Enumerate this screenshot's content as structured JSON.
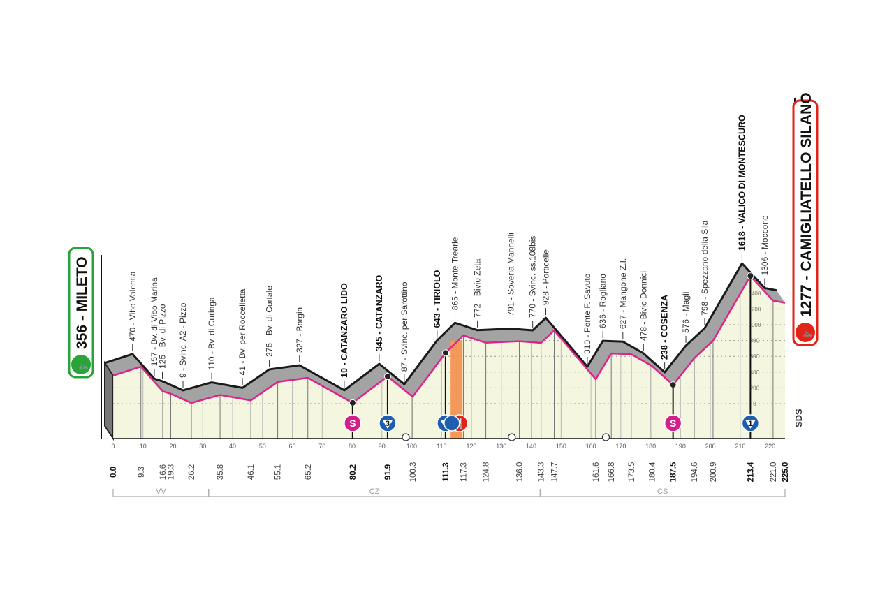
{
  "chart_data": {
    "type": "area",
    "title": "",
    "xlabel": "",
    "ylabel": "",
    "xlim": [
      0,
      225
    ],
    "ylim": [
      0,
      1618
    ],
    "grid": true,
    "start": {
      "km": "0.0",
      "elevation": 356,
      "label": "356 - MILETO",
      "color": "#2aa33a"
    },
    "finish": {
      "km": "225.0",
      "elevation": 1277,
      "label": "1277 - CAMIGLIATELLO SILANO",
      "color": "#e2231a"
    },
    "points": [
      {
        "km": 9.3,
        "km_label": "9.3",
        "elevation": 470,
        "label": "470 - Vibo Valentia",
        "bold": false
      },
      {
        "km": 16.6,
        "km_label": "16.6",
        "elevation": 157,
        "label": "157 - Bv. di Vibo Marina",
        "bold": false
      },
      {
        "km": 19.3,
        "km_label": "19.3",
        "elevation": 125,
        "label": "125 - Bv. di Pizzo",
        "bold": false
      },
      {
        "km": 26.2,
        "km_label": "26.2",
        "elevation": 9,
        "label": "9 - Svinc. A2 - Pizzo",
        "bold": false
      },
      {
        "km": 35.8,
        "km_label": "35.8",
        "elevation": 110,
        "label": "110 - Bv. di Curinga",
        "bold": false
      },
      {
        "km": 46.1,
        "km_label": "46.1",
        "elevation": 41,
        "label": "41 - Bv. per Roccelletta",
        "bold": false
      },
      {
        "km": 55.1,
        "km_label": "55.1",
        "elevation": 275,
        "label": "275 - Bv. di Cortale",
        "bold": false
      },
      {
        "km": 65.2,
        "km_label": "65.2",
        "elevation": 327,
        "label": "327 - Borgia",
        "bold": false
      },
      {
        "km": 80.2,
        "km_label": "80.2",
        "elevation": 10,
        "label": "10 - CATANZARO LIDO",
        "bold": true
      },
      {
        "km": 91.9,
        "km_label": "91.9",
        "elevation": 345,
        "label": "345 - CATANZARO",
        "bold": true
      },
      {
        "km": 100.3,
        "km_label": "100.3",
        "elevation": 87,
        "label": "87 - Svinc. per Sarottino",
        "bold": false
      },
      {
        "km": 111.3,
        "km_label": "111.3",
        "elevation": 643,
        "label": "643 - TIRIOLO",
        "bold": true
      },
      {
        "km": 117.3,
        "km_label": "117.3",
        "elevation": 865,
        "label": "865 - Monte Trearie",
        "bold": false
      },
      {
        "km": 124.8,
        "km_label": "124.8",
        "elevation": 772,
        "label": "772 - Bivio Zeta",
        "bold": false
      },
      {
        "km": 136.0,
        "km_label": "136.0",
        "elevation": 791,
        "label": "791 - Soveria Mannelli",
        "bold": false
      },
      {
        "km": 143.3,
        "km_label": "143.3",
        "elevation": 770,
        "label": "770 - Svinc. ss.108bis",
        "bold": false
      },
      {
        "km": 147.7,
        "km_label": "147.7",
        "elevation": 928,
        "label": "928 - Porticelle",
        "bold": false
      },
      {
        "km": 161.6,
        "km_label": "161.6",
        "elevation": 310,
        "label": "310 - Ponte F. Savuto",
        "bold": false
      },
      {
        "km": 166.8,
        "km_label": "166.8",
        "elevation": 636,
        "label": "636 - Rogliano",
        "bold": false
      },
      {
        "km": 173.5,
        "km_label": "173.5",
        "elevation": 627,
        "label": "627 - Mangone Z.I.",
        "bold": false
      },
      {
        "km": 180.4,
        "km_label": "180.4",
        "elevation": 478,
        "label": "478 - Bivio Donnici",
        "bold": false
      },
      {
        "km": 187.5,
        "km_label": "187.5",
        "elevation": 238,
        "label": "238 - COSENZA",
        "bold": true
      },
      {
        "km": 194.6,
        "km_label": "194.6",
        "elevation": 576,
        "label": "576 - Magli",
        "bold": false
      },
      {
        "km": 200.9,
        "km_label": "200.9",
        "elevation": 798,
        "label": "798 - Spezzano della Sila",
        "bold": false
      },
      {
        "km": 213.4,
        "km_label": "213.4",
        "elevation": 1618,
        "label": "1618 - VALICO DI MONTESCURO",
        "bold": true
      },
      {
        "km": 221.0,
        "km_label": "221.0",
        "elevation": 1306,
        "label": "1306 - Moccone",
        "bold": false
      }
    ],
    "x_ticks": [
      "0",
      "10",
      "20",
      "30",
      "40",
      "50",
      "60",
      "70",
      "80",
      "90",
      "100",
      "110",
      "120",
      "130",
      "140",
      "150",
      "160",
      "170",
      "180",
      "190",
      "200",
      "210",
      "220"
    ],
    "elevation_ticks": [
      "0",
      "200",
      "400",
      "600",
      "800",
      "1000",
      "1200",
      "1400"
    ],
    "markers": [
      {
        "type": "sprint",
        "km": 80.2,
        "text": "S",
        "color": "#d21f8c"
      },
      {
        "type": "kom",
        "km": 91.9,
        "text": "3",
        "color": "#1d5fae"
      },
      {
        "type": "kom",
        "km": 111.3,
        "text": "3",
        "color": "#1d5fae"
      },
      {
        "type": "feed",
        "km": 117.3,
        "text": "🍴",
        "color": "#e2231a"
      },
      {
        "type": "sprint",
        "km": 187.5,
        "text": "S",
        "color": "#d21f8c"
      },
      {
        "type": "kom",
        "km": 213.4,
        "text": "1",
        "color": "#1d5fae"
      }
    ],
    "feed_zone": [
      113,
      117
    ],
    "small_icons": [
      {
        "type": "tunnel",
        "km": 98
      },
      {
        "type": "level-crossing",
        "km": 133.5
      },
      {
        "type": "level-crossing",
        "km": 165
      }
    ],
    "provinces": [
      {
        "code": "VV",
        "from": 0,
        "to": 32
      },
      {
        "code": "CZ",
        "from": 32,
        "to": 143
      },
      {
        "code": "CS",
        "from": 143,
        "to": 225
      }
    ],
    "logo": "SDS",
    "colors": {
      "line": "#e0218a",
      "fill": "#f4f6df",
      "band": "#a3a3a3",
      "top": "#1a1a1a"
    }
  }
}
